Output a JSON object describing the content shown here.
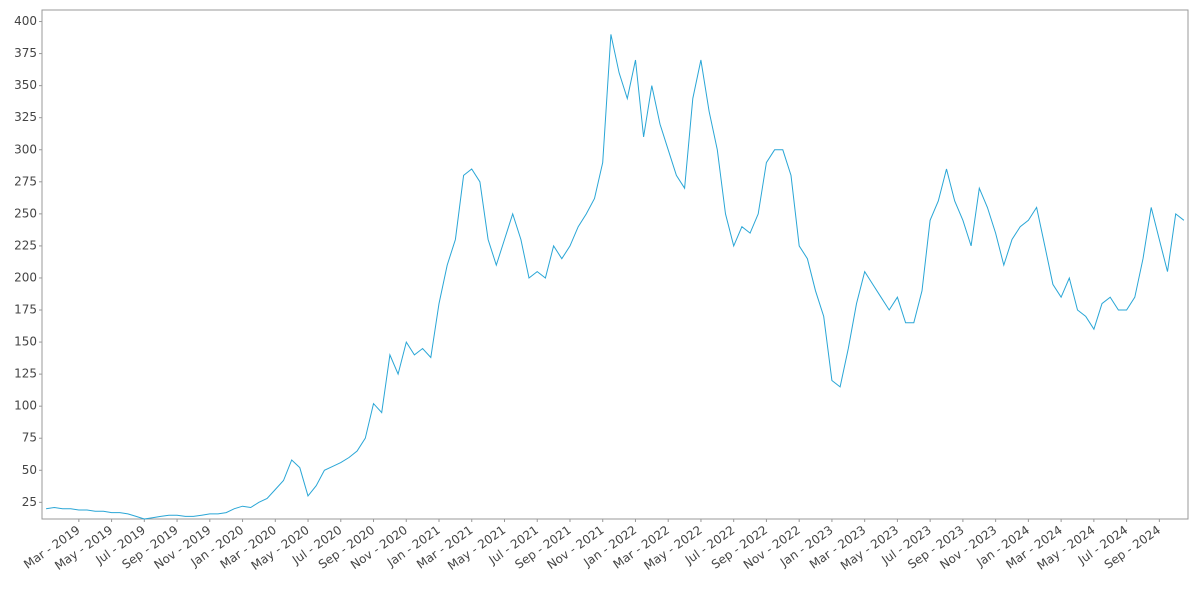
{
  "chart_data": {
    "type": "line",
    "categories": [
      null,
      null,
      null,
      null,
      "Mar - 2019",
      null,
      null,
      null,
      "May - 2019",
      null,
      null,
      null,
      "Jul - 2019",
      null,
      null,
      null,
      "Sep - 2019",
      null,
      null,
      null,
      "Nov - 2019",
      null,
      null,
      null,
      "Jan - 2020",
      null,
      null,
      null,
      "Mar - 2020",
      null,
      null,
      null,
      "May - 2020",
      null,
      null,
      null,
      "Jul - 2020",
      null,
      null,
      null,
      "Sep - 2020",
      null,
      null,
      null,
      "Nov - 2020",
      null,
      null,
      null,
      "Jan - 2021",
      null,
      null,
      null,
      "Mar - 2021",
      null,
      null,
      null,
      "May - 2021",
      null,
      null,
      null,
      "Jul - 2021",
      null,
      null,
      null,
      "Sep - 2021",
      null,
      null,
      null,
      "Nov - 2021",
      null,
      null,
      null,
      "Jan - 2022",
      null,
      null,
      null,
      "Mar - 2022",
      null,
      null,
      null,
      "May - 2022",
      null,
      null,
      null,
      "Jul - 2022",
      null,
      null,
      null,
      "Sep - 2022",
      null,
      null,
      null,
      "Nov - 2022",
      null,
      null,
      null,
      "Jan - 2023",
      null,
      null,
      null,
      "Mar - 2023",
      null,
      null,
      null,
      "May - 2023",
      null,
      null,
      null,
      "Jul - 2023",
      null,
      null,
      null,
      "Sep - 2023",
      null,
      null,
      null,
      "Nov - 2023",
      null,
      null,
      null,
      "Jan - 2024",
      null,
      null,
      null,
      "Mar - 2024",
      null,
      null,
      null,
      "May - 2024",
      null,
      null,
      null,
      "Jul - 2024",
      null,
      null,
      null,
      "Sep - 2024",
      null,
      null,
      null
    ],
    "values": [
      20,
      21,
      20,
      20,
      19,
      19,
      18,
      18,
      17,
      17,
      16,
      14,
      12,
      13,
      14,
      15,
      15,
      14,
      14,
      15,
      16,
      16,
      17,
      20,
      22,
      21,
      25,
      28,
      35,
      42,
      58,
      52,
      30,
      38,
      50,
      53,
      56,
      60,
      65,
      75,
      102,
      95,
      140,
      125,
      150,
      140,
      145,
      138,
      180,
      210,
      230,
      280,
      285,
      275,
      230,
      210,
      230,
      250,
      230,
      200,
      205,
      200,
      225,
      215,
      225,
      240,
      250,
      262,
      290,
      390,
      360,
      340,
      370,
      310,
      350,
      320,
      300,
      280,
      270,
      340,
      370,
      330,
      300,
      250,
      225,
      240,
      235,
      250,
      290,
      300,
      300,
      280,
      225,
      215,
      190,
      170,
      120,
      115,
      145,
      180,
      205,
      195,
      185,
      175,
      185,
      165,
      165,
      190,
      245,
      260,
      285,
      260,
      245,
      225,
      270,
      255,
      235,
      210,
      230,
      240,
      245,
      255,
      225,
      195,
      185,
      200,
      175,
      170,
      160,
      180,
      185,
      175,
      175,
      185,
      215,
      255,
      230,
      205,
      250,
      245
    ],
    "color": "#2aa6d6",
    "ylim": [
      12,
      409
    ],
    "yticks": [
      25,
      50,
      75,
      100,
      125,
      150,
      175,
      200,
      225,
      250,
      275,
      300,
      325,
      350,
      375,
      400
    ]
  }
}
